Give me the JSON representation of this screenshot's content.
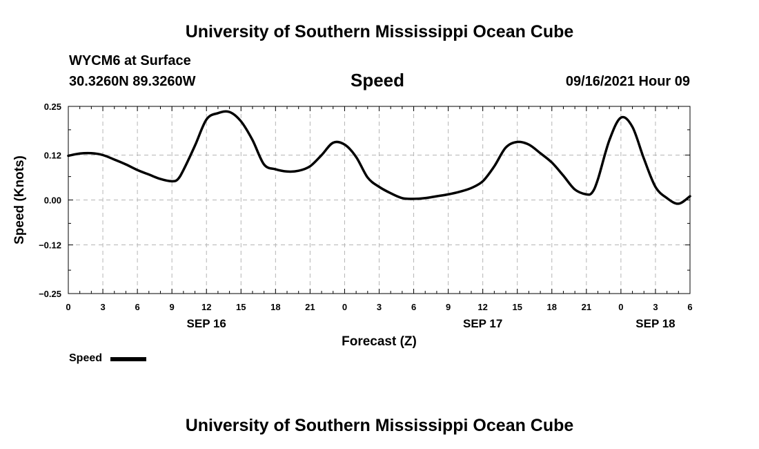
{
  "page": {
    "top_title": "University of Southern Mississippi Ocean Cube",
    "bottom_title": "University of Southern Mississippi Ocean Cube",
    "station": "WYCM6 at Surface",
    "coords": "30.3260N  89.3260W",
    "datetime": "09/16/2021 Hour 09"
  },
  "legend": {
    "label": "Speed"
  },
  "colors": {
    "line": "#000000",
    "grid": "#b4b4b4",
    "background": "#ffffff"
  },
  "chart_data": {
    "type": "line",
    "title": "Speed",
    "xlabel": "Forecast (Z)",
    "ylabel": "Speed (Knots)",
    "xlim": [
      0,
      54
    ],
    "ylim": [
      -0.25,
      0.25
    ],
    "yticks": [
      0.25,
      0.12,
      0.0,
      -0.12,
      -0.25
    ],
    "ytick_labels": [
      "0.25",
      "0.12",
      "0.00",
      "−0.12",
      "−0.25"
    ],
    "xticks": [
      0,
      3,
      6,
      9,
      12,
      15,
      18,
      21,
      24,
      27,
      30,
      33,
      36,
      39,
      42,
      45,
      48,
      51,
      54
    ],
    "xtick_labels": [
      "0",
      "3",
      "6",
      "9",
      "12",
      "15",
      "18",
      "21",
      "0",
      "3",
      "6",
      "9",
      "12",
      "15",
      "18",
      "21",
      "0",
      "3",
      "6"
    ],
    "date_labels": [
      {
        "label": "SEP 16",
        "x": 12
      },
      {
        "label": "SEP 17",
        "x": 36
      },
      {
        "label": "SEP 18",
        "x": 51
      }
    ],
    "grid": true,
    "series": [
      {
        "name": "Speed",
        "x": [
          0,
          1,
          2,
          3,
          4,
          5,
          6,
          7,
          8,
          9,
          9.5,
          10,
          11,
          12,
          13,
          14,
          15,
          16,
          17,
          18,
          19,
          20,
          21,
          22,
          23,
          24,
          25,
          26,
          27,
          28,
          29,
          30,
          31,
          32,
          33,
          34,
          35,
          36,
          37,
          38,
          39,
          40,
          41,
          42,
          43,
          44,
          45,
          45.5,
          46,
          47,
          48,
          49,
          50,
          51,
          52,
          53,
          54
        ],
        "values": [
          0.118,
          0.124,
          0.125,
          0.12,
          0.108,
          0.095,
          0.08,
          0.068,
          0.056,
          0.05,
          0.055,
          0.08,
          0.145,
          0.215,
          0.232,
          0.235,
          0.21,
          0.16,
          0.095,
          0.082,
          0.076,
          0.078,
          0.09,
          0.12,
          0.153,
          0.148,
          0.115,
          0.06,
          0.035,
          0.018,
          0.005,
          0.003,
          0.005,
          0.01,
          0.015,
          0.022,
          0.032,
          0.05,
          0.09,
          0.14,
          0.155,
          0.148,
          0.125,
          0.1,
          0.065,
          0.028,
          0.015,
          0.02,
          0.055,
          0.16,
          0.22,
          0.195,
          0.11,
          0.035,
          0.005,
          -0.01,
          0.01
        ]
      }
    ]
  }
}
